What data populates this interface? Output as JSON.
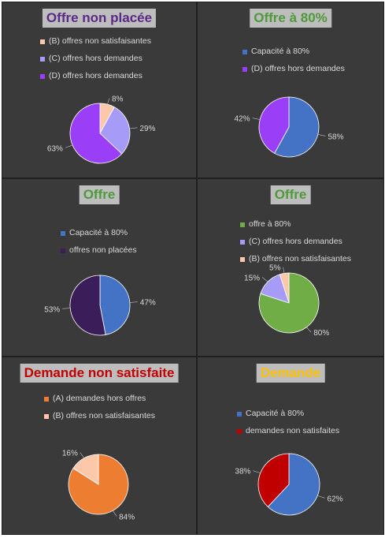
{
  "chart_data": [
    {
      "type": "pie",
      "title": "Offre non placée",
      "title_color": "#5b2a86",
      "categories": [
        "(B) offres non satisfaisantes",
        "(C) offres hors demandes",
        "(D) offres hors demandes"
      ],
      "values": [
        8,
        29,
        63
      ],
      "labels": [
        "8%",
        "29%",
        "63%"
      ],
      "colors": [
        "#fbc9a9",
        "#a69cf7",
        "#9a3ff7"
      ],
      "legend": "top"
    },
    {
      "type": "pie",
      "title": "Offre à 80%",
      "title_color": "#4e9a3a",
      "categories": [
        "Capacité à 80%",
        "(D) offres hors demandes"
      ],
      "values": [
        58,
        42
      ],
      "labels": [
        "58%",
        "42%"
      ],
      "colors": [
        "#4472c4",
        "#9a3ff7"
      ],
      "legend": "top"
    },
    {
      "type": "pie",
      "title": "Offre",
      "title_color": "#4e9a3a",
      "categories": [
        "Capacité à 80%",
        "offres non placées"
      ],
      "values": [
        47,
        53
      ],
      "labels": [
        "47%",
        "53%"
      ],
      "colors": [
        "#4472c4",
        "#3b1d5a"
      ],
      "legend": "top"
    },
    {
      "type": "pie",
      "title": "Offre",
      "title_color": "#4e9a3a",
      "categories": [
        "offre à 80%",
        "(C) offres hors demandes",
        "(B) offres non satisfaisantes"
      ],
      "values": [
        80,
        15,
        5
      ],
      "labels": [
        "80%",
        "15%",
        "5%"
      ],
      "colors": [
        "#70ad47",
        "#a69cf7",
        "#fbc9a9"
      ],
      "legend": "top"
    },
    {
      "type": "pie",
      "title": "Demande non satisfaite",
      "title_color": "#c00000",
      "categories": [
        "(A) demandes hors offres",
        "(B) offres non satisfaisantes"
      ],
      "values": [
        84,
        16
      ],
      "labels": [
        "84%",
        "16%"
      ],
      "colors": [
        "#ed7d31",
        "#fbc9a9"
      ],
      "legend": "top"
    },
    {
      "type": "pie",
      "title": "Demande",
      "title_color": "#ffc000",
      "categories": [
        "Capacité à 80%",
        "demandes non satisfaites"
      ],
      "values": [
        62,
        38
      ],
      "labels": [
        "62%",
        "38%"
      ],
      "colors": [
        "#4472c4",
        "#c00000"
      ],
      "legend": "top"
    }
  ]
}
